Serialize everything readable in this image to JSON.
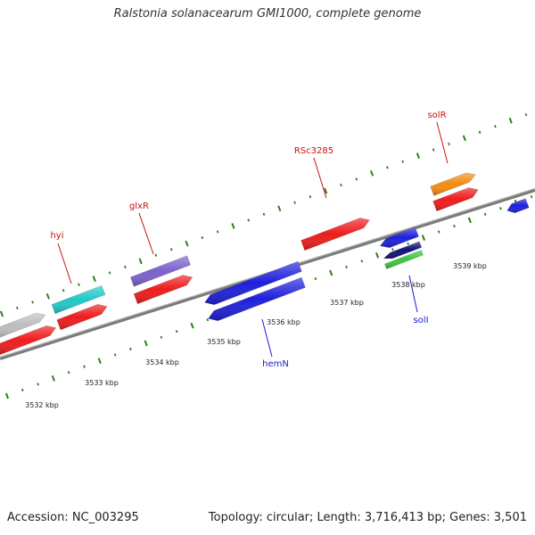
{
  "title": "Ralstonia solanacearum GMI1000, complete genome",
  "footer": {
    "accession": "Accession: NC_003295",
    "summary": "Topology: circular; Length: 3,716,413 bp; Genes: 3,501"
  },
  "colors": {
    "tick": "#2e7d1e",
    "backbone": "#7a7a7a",
    "red": "#ee1c1c",
    "blue": "#1f1fdc",
    "navy": "#10107a",
    "cyan": "#22c8c8",
    "purple": "#7a62cc",
    "orange": "#f28c10",
    "gray": "#bdbdbd",
    "green": "#3cc63c",
    "label_red": "#cc1111",
    "label_blue": "#1a1acc"
  },
  "scale_labels": [
    "3532 kbp",
    "3533 kbp",
    "3534 kbp",
    "3535 kbp",
    "3536 kbp",
    "3537 kbp",
    "3538 kbp",
    "3539 kbp"
  ],
  "gene_labels": [
    {
      "name": "hyi",
      "color": "label_red"
    },
    {
      "name": "glxR",
      "color": "label_red"
    },
    {
      "name": "RSc3285",
      "color": "label_red"
    },
    {
      "name": "solR",
      "color": "label_red"
    },
    {
      "name": "hemN",
      "color": "label_blue"
    },
    {
      "name": "solI",
      "color": "label_blue"
    }
  ]
}
